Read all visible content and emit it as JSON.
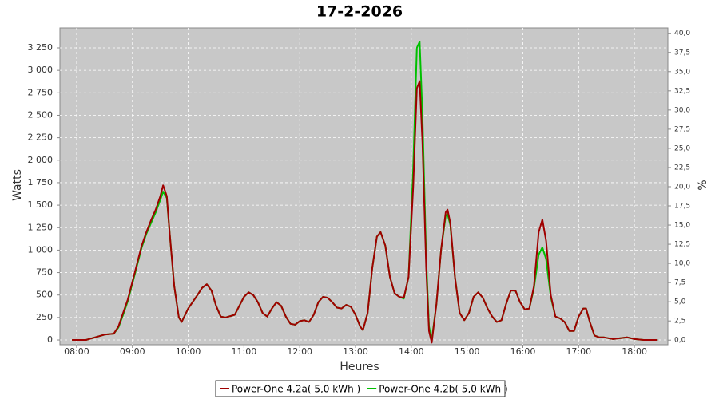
{
  "chart_data": {
    "type": "line",
    "title": "17-2-2026",
    "xlabel": "Heures",
    "ylabel": "Watts",
    "y2label": "%",
    "x": [
      "07:55",
      "08:10",
      "08:20",
      "08:30",
      "08:40",
      "08:45",
      "08:50",
      "08:55",
      "09:00",
      "09:05",
      "09:10",
      "09:15",
      "09:20",
      "09:25",
      "09:30",
      "09:33",
      "09:37",
      "09:40",
      "09:45",
      "09:50",
      "09:53",
      "10:00",
      "10:10",
      "10:15",
      "10:20",
      "10:25",
      "10:30",
      "10:35",
      "10:40",
      "10:50",
      "11:00",
      "11:05",
      "11:10",
      "11:15",
      "11:20",
      "11:25",
      "11:30",
      "11:35",
      "11:40",
      "11:45",
      "11:50",
      "11:55",
      "12:00",
      "12:05",
      "12:10",
      "12:15",
      "12:20",
      "12:25",
      "12:30",
      "12:35",
      "12:40",
      "12:45",
      "12:50",
      "12:55",
      "13:00",
      "13:05",
      "13:08",
      "13:13",
      "13:18",
      "13:23",
      "13:27",
      "13:32",
      "13:37",
      "13:42",
      "13:47",
      "13:52",
      "13:57",
      "14:02",
      "14:06",
      "14:09",
      "14:12",
      "14:16",
      "14:19",
      "14:22",
      "14:27",
      "14:32",
      "14:37",
      "14:39",
      "14:42",
      "14:47",
      "14:52",
      "14:57",
      "15:02",
      "15:07",
      "15:12",
      "15:17",
      "15:22",
      "15:27",
      "15:32",
      "15:37",
      "15:42",
      "15:47",
      "15:52",
      "15:57",
      "16:02",
      "16:07",
      "16:12",
      "16:17",
      "16:21",
      "16:25",
      "16:30",
      "16:35",
      "16:40",
      "16:45",
      "16:50",
      "16:55",
      "17:00",
      "17:05",
      "17:08",
      "17:12",
      "17:17",
      "17:22",
      "17:27",
      "17:32",
      "17:37",
      "17:45",
      "17:52",
      "18:00",
      "18:10",
      "18:25"
    ],
    "series": [
      {
        "name": "Power-One 4.2b( 5,0 kWh )",
        "color": "#00c000",
        "values": [
          0,
          0,
          30,
          60,
          70,
          140,
          280,
          430,
          630,
          830,
          1030,
          1180,
          1300,
          1420,
          1560,
          1650,
          1580,
          1200,
          600,
          250,
          200,
          350,
          500,
          580,
          620,
          550,
          380,
          260,
          250,
          280,
          480,
          530,
          500,
          420,
          300,
          260,
          350,
          420,
          380,
          260,
          180,
          170,
          210,
          220,
          200,
          280,
          420,
          480,
          470,
          420,
          360,
          350,
          390,
          370,
          280,
          150,
          110,
          300,
          800,
          1150,
          1200,
          1050,
          700,
          520,
          480,
          460,
          700,
          1900,
          3250,
          3320,
          2500,
          900,
          150,
          0,
          400,
          1000,
          1380,
          1400,
          1280,
          700,
          300,
          220,
          300,
          480,
          530,
          470,
          350,
          260,
          200,
          220,
          400,
          550,
          550,
          420,
          340,
          350,
          580,
          950,
          1030,
          900,
          480,
          260,
          240,
          200,
          100,
          100,
          260,
          350,
          350,
          200,
          50,
          30,
          30,
          20,
          10,
          20,
          30,
          10,
          0,
          0
        ]
      },
      {
        "name": "Power-One 4.2a( 5,0 kWh )",
        "color": "#a00000",
        "values": [
          0,
          0,
          30,
          60,
          70,
          150,
          300,
          450,
          650,
          850,
          1050,
          1200,
          1330,
          1450,
          1600,
          1720,
          1600,
          1200,
          600,
          250,
          200,
          350,
          500,
          580,
          620,
          550,
          380,
          260,
          250,
          280,
          480,
          530,
          500,
          420,
          300,
          260,
          350,
          420,
          380,
          260,
          180,
          170,
          210,
          220,
          200,
          280,
          420,
          480,
          470,
          420,
          360,
          350,
          390,
          370,
          280,
          150,
          110,
          300,
          800,
          1150,
          1200,
          1050,
          700,
          520,
          480,
          470,
          700,
          1700,
          2800,
          2880,
          2200,
          800,
          100,
          -30,
          400,
          1000,
          1420,
          1450,
          1300,
          700,
          300,
          220,
          300,
          480,
          530,
          470,
          350,
          260,
          200,
          220,
          400,
          550,
          550,
          420,
          340,
          350,
          600,
          1200,
          1340,
          1100,
          500,
          260,
          240,
          200,
          100,
          100,
          260,
          350,
          350,
          200,
          50,
          30,
          30,
          20,
          10,
          20,
          30,
          10,
          0,
          0
        ]
      }
    ],
    "xlim": [
      "07:42",
      "18:36"
    ],
    "xticks": [
      "08:00",
      "09:00",
      "10:00",
      "11:00",
      "12:00",
      "13:00",
      "14:00",
      "15:00",
      "16:00",
      "17:00",
      "18:00"
    ],
    "ylim": [
      -53,
      3472
    ],
    "yticks": [
      0,
      250,
      500,
      750,
      {
        "value": 1000,
        "label": "1 000"
      },
      {
        "value": 1250,
        "label": "1 250"
      },
      {
        "value": 1500,
        "label": "1 500"
      },
      {
        "value": 1750,
        "label": "1 750"
      },
      {
        "value": 2000,
        "label": "2 000"
      },
      {
        "value": 2250,
        "label": "2 250"
      },
      {
        "value": 2500,
        "label": "2 500"
      },
      {
        "value": 2750,
        "label": "2 750"
      },
      {
        "value": 3000,
        "label": "3 000"
      },
      {
        "value": 3250,
        "label": "3 250"
      }
    ],
    "y2lim": [
      -0.6,
      40.7
    ],
    "y2ticks": [
      {
        "value": 0,
        "label": "0,0"
      },
      {
        "value": 2.5,
        "label": "2,5"
      },
      {
        "value": 5,
        "label": "5,0"
      },
      {
        "value": 7.5,
        "label": "7,5"
      },
      {
        "value": 10,
        "label": "10,0"
      },
      {
        "value": 12.5,
        "label": "12,5"
      },
      {
        "value": 15,
        "label": "15,0"
      },
      {
        "value": 17.5,
        "label": "17,5"
      },
      {
        "value": 20,
        "label": "20,0"
      },
      {
        "value": 22.5,
        "label": "22,5"
      },
      {
        "value": 25,
        "label": "25,0"
      },
      {
        "value": 27.5,
        "label": "27,5"
      },
      {
        "value": 30,
        "label": "30,0"
      },
      {
        "value": 32.5,
        "label": "32,5"
      },
      {
        "value": 35,
        "label": "35,0"
      },
      {
        "value": 37.5,
        "label": "37,5"
      },
      {
        "value": 40,
        "label": "40,0"
      }
    ],
    "grid": true,
    "legend": "bottom"
  }
}
